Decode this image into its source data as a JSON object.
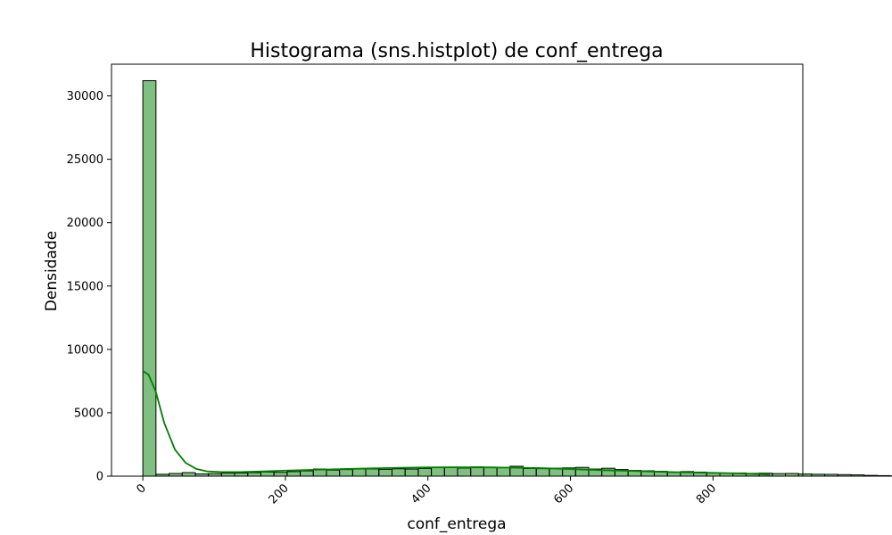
{
  "chart_data": {
    "type": "bar",
    "title": "Histograma (sns.histplot) de conf_entrega",
    "xlabel": "conf_entrega",
    "ylabel": "Densidade",
    "xlim": [
      -44,
      926
    ],
    "ylim": [
      0,
      32500
    ],
    "x_ticks": [
      0,
      200,
      400,
      600,
      800
    ],
    "y_ticks": [
      0,
      5000,
      10000,
      15000,
      20000,
      25000,
      30000
    ],
    "bin_width": 18.4,
    "bin_start": 0,
    "values": [
      31200,
      150,
      210,
      280,
      180,
      200,
      240,
      250,
      280,
      330,
      300,
      360,
      420,
      560,
      480,
      520,
      560,
      570,
      540,
      580,
      560,
      610,
      690,
      700,
      640,
      730,
      710,
      680,
      780,
      600,
      590,
      630,
      650,
      690,
      560,
      620,
      520,
      450,
      420,
      380,
      300,
      360,
      320,
      250,
      230,
      250,
      220,
      230,
      200,
      210,
      170,
      150,
      140,
      120,
      100,
      60,
      40,
      20
    ],
    "kde": {
      "x": [
        0,
        8,
        18,
        30,
        45,
        60,
        75,
        90,
        110,
        140,
        170,
        200,
        240,
        280,
        320,
        360,
        400,
        440,
        480,
        520,
        560,
        600,
        640,
        680,
        720,
        760,
        800,
        840,
        880
      ],
      "y": [
        8300,
        8000,
        6700,
        4200,
        2100,
        1050,
        570,
        380,
        320,
        330,
        380,
        440,
        500,
        560,
        610,
        660,
        690,
        700,
        690,
        670,
        630,
        560,
        480,
        420,
        350,
        300,
        260,
        210,
        120
      ]
    },
    "colors": {
      "bar_fill": "#008000",
      "bar_alpha": 0.5,
      "bar_edge": "#000000",
      "kde_line": "#008000"
    },
    "grid": false,
    "xtick_rotation": -45
  }
}
